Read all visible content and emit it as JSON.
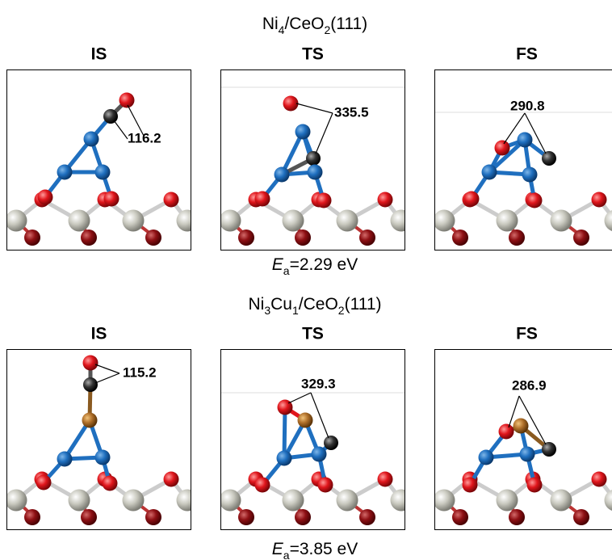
{
  "rows": [
    {
      "title_parts": [
        "Ni",
        "4",
        "/CeO",
        "2",
        "(111)"
      ],
      "panels": [
        {
          "label": "IS",
          "angle": "116.2"
        },
        {
          "label": "TS",
          "angle": "335.5"
        },
        {
          "label": "FS",
          "angle": "290.8"
        }
      ],
      "energy_parts": [
        "E",
        "a",
        "=2.29 eV"
      ]
    },
    {
      "title_parts": [
        "Ni",
        "3",
        "Cu",
        "1",
        "/CeO",
        "2",
        "(111)"
      ],
      "panels": [
        {
          "label": "IS",
          "angle": "115.2"
        },
        {
          "label": "TS",
          "angle": "329.3"
        },
        {
          "label": "FS",
          "angle": "286.9"
        }
      ],
      "energy_parts": [
        "E",
        "a",
        "=3.85 eV"
      ]
    }
  ]
}
